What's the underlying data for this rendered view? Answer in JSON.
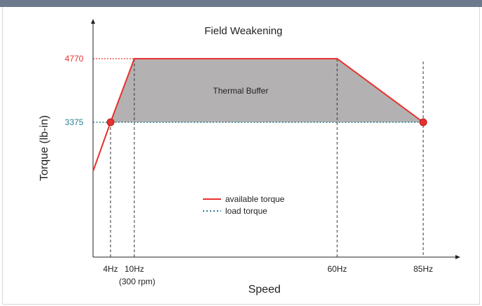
{
  "chart_data": {
    "type": "area",
    "title": "Field Weakening",
    "xlabel": "Speed",
    "ylabel": "Torque (lb-in)",
    "x_ticks": [
      {
        "value": 4,
        "label": "4Hz"
      },
      {
        "value": 10,
        "label": "10Hz",
        "sublabel": "(300 rpm)"
      },
      {
        "value": 60,
        "label": "60Hz"
      },
      {
        "value": 85,
        "label": "85Hz"
      }
    ],
    "y_ticks": [
      {
        "value": 4770,
        "label": "4770",
        "color": "#e8312f"
      },
      {
        "value": 3375,
        "label": "3375",
        "color": "#2a7f8f"
      }
    ],
    "xlim": [
      0,
      100
    ],
    "ylim": [
      0,
      5900
    ],
    "series": [
      {
        "name": "available torque",
        "style": "solid",
        "color": "#e8312f",
        "x": [
          0,
          4,
          10,
          60,
          85
        ],
        "y": [
          2300,
          3375,
          4770,
          4770,
          3375
        ]
      },
      {
        "name": "load torque",
        "style": "dotted",
        "color": "#2a7f8f",
        "x": [
          0,
          85
        ],
        "y": [
          3375,
          3375
        ]
      }
    ],
    "shaded_region": {
      "label": "Thermal Buffer",
      "color": "#b4b1b2",
      "x": [
        4,
        10,
        60,
        85
      ],
      "y": [
        3375,
        4770,
        4770,
        3375
      ]
    },
    "markers": [
      {
        "x": 4,
        "y": 3375
      },
      {
        "x": 85,
        "y": 3375
      }
    ],
    "legend_position": "center",
    "grid": false
  }
}
